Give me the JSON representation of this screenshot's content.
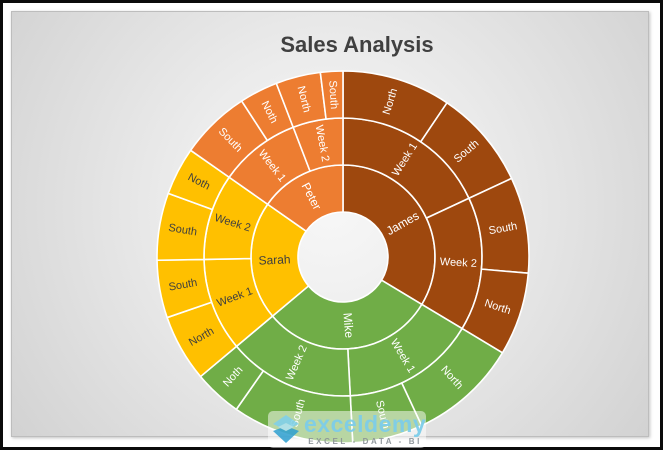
{
  "chart_data": {
    "type": "sunburst",
    "title": "Sales Analysis",
    "rings": [
      "person",
      "week",
      "region"
    ],
    "value_unit": "angular span in degrees (chart shows no numeric labels; values estimated from segment angles)",
    "legend": "none",
    "series": [
      {
        "name": "James",
        "color": "#9E480E",
        "text_color": "#FFFFFF",
        "children": [
          {
            "name": "Week 1",
            "children": [
              {
                "name": "North",
                "value": 34
              },
              {
                "name": "South",
                "value": 31
              }
            ]
          },
          {
            "name": "Week 2",
            "children": [
              {
                "name": "South",
                "value": 30
              },
              {
                "name": "North",
                "value": 26
              }
            ]
          }
        ]
      },
      {
        "name": "Mike",
        "color": "#70AD47",
        "text_color": "#FFFFFF",
        "children": [
          {
            "name": "Week 1",
            "children": [
              {
                "name": "North",
                "value": 34
              },
              {
                "name": "South",
                "value": 22
              }
            ]
          },
          {
            "name": "Week 2",
            "children": [
              {
                "name": "South",
                "value": 38
              },
              {
                "name": "Noth",
                "value": 15
              }
            ]
          }
        ]
      },
      {
        "name": "Sarah",
        "color": "#FFC000",
        "text_color": "#3F3F3F",
        "children": [
          {
            "name": "Week 1",
            "children": [
              {
                "name": "North",
                "value": 21
              },
              {
                "name": "South",
                "value": 18
              }
            ]
          },
          {
            "name": "Week 2",
            "children": [
              {
                "name": "South",
                "value": 21
              },
              {
                "name": "Noth",
                "value": 15
              }
            ]
          }
        ]
      },
      {
        "name": "Peter",
        "color": "#ED7D31",
        "text_color": "#FFFFFF",
        "children": [
          {
            "name": "Week 1",
            "children": [
              {
                "name": "South",
                "value": 22
              },
              {
                "name": "Noth",
                "value": 12
              }
            ]
          },
          {
            "name": "Week 2",
            "children": [
              {
                "name": "North",
                "value": 14
              },
              {
                "name": "South",
                "value": 7
              }
            ]
          }
        ]
      }
    ]
  },
  "watermark": {
    "brand": "exceldemy",
    "tagline": "EXCEL - DATA - BI",
    "brand_color": "#7CCCE9",
    "logo": "exceldemy-diamond-logo"
  }
}
